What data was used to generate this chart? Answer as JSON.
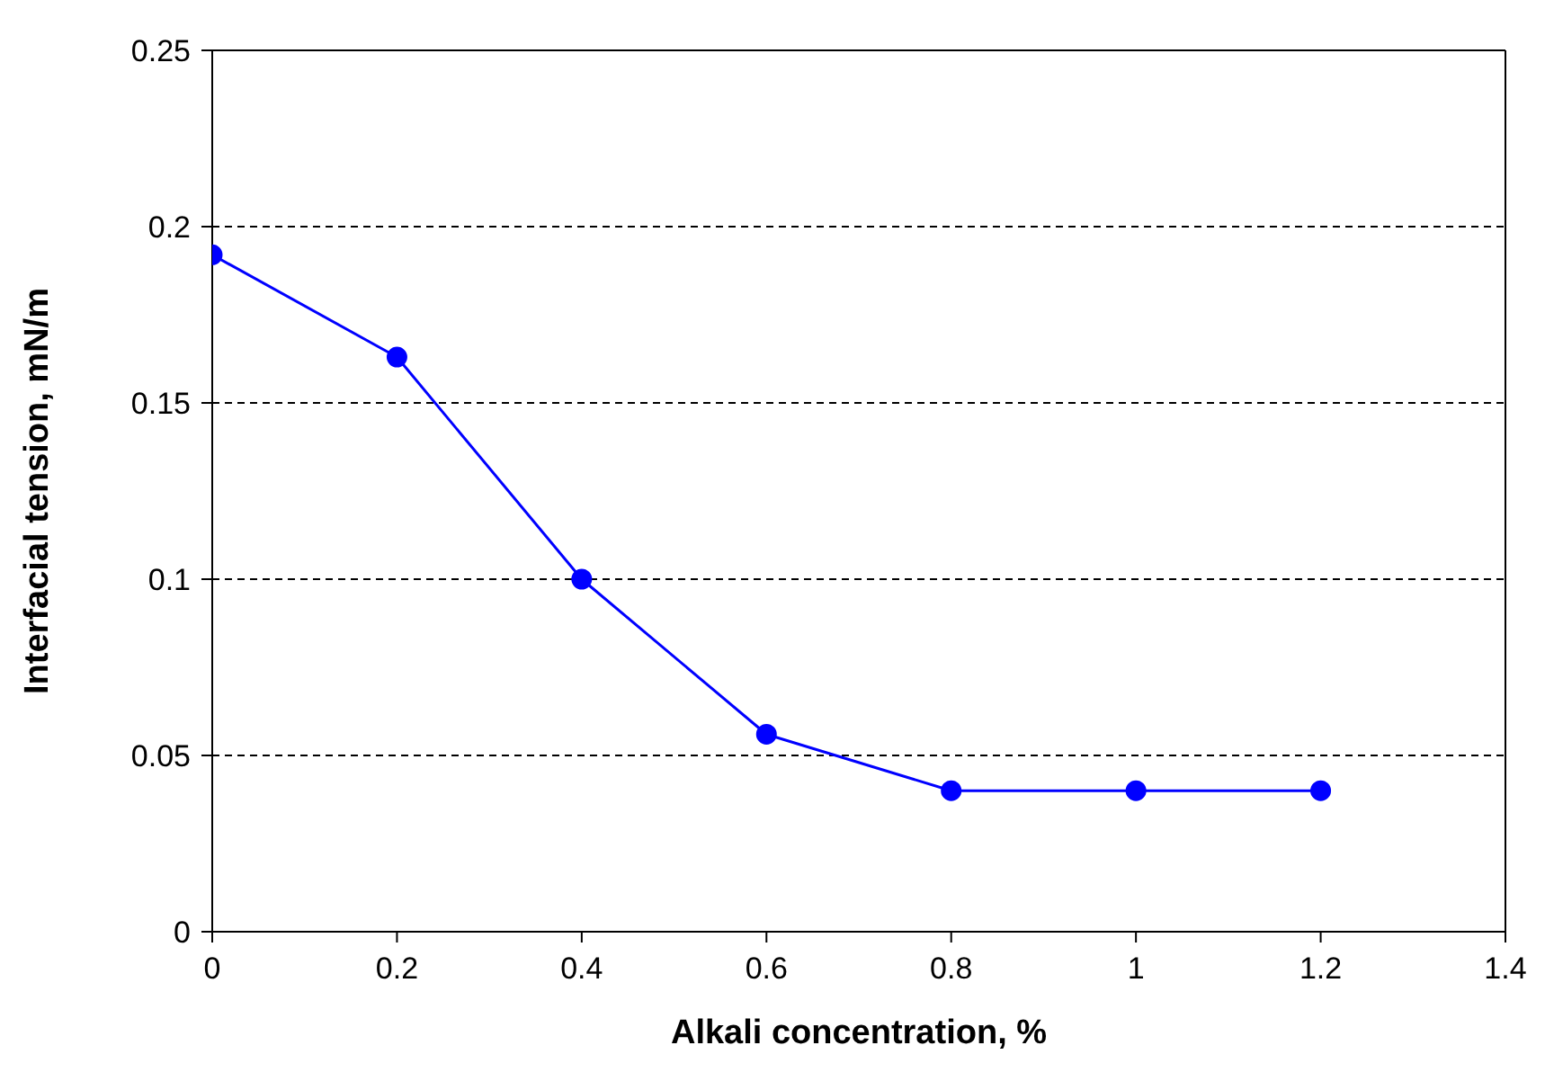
{
  "chart_data": {
    "type": "line",
    "xlabel": "Alkali concentration, %",
    "ylabel": "Interfacial tension, mN/m",
    "x": [
      0,
      0.2,
      0.4,
      0.6,
      0.8,
      1,
      1.2
    ],
    "series": [
      {
        "color": "#0000ff",
        "values": [
          0.192,
          0.163,
          0.1,
          0.056,
          0.04,
          0.04,
          0.04
        ]
      }
    ],
    "xlim": [
      0,
      1.4
    ],
    "xticks": [
      0,
      0.2,
      0.4,
      0.6,
      0.8,
      1,
      1.2,
      1.4
    ],
    "ylim": [
      0,
      0.25
    ],
    "yticks": [
      0,
      0.05,
      0.1,
      0.15,
      0.2,
      0.25
    ],
    "grid": "y",
    "marker": "circle",
    "line_style": "solid"
  }
}
